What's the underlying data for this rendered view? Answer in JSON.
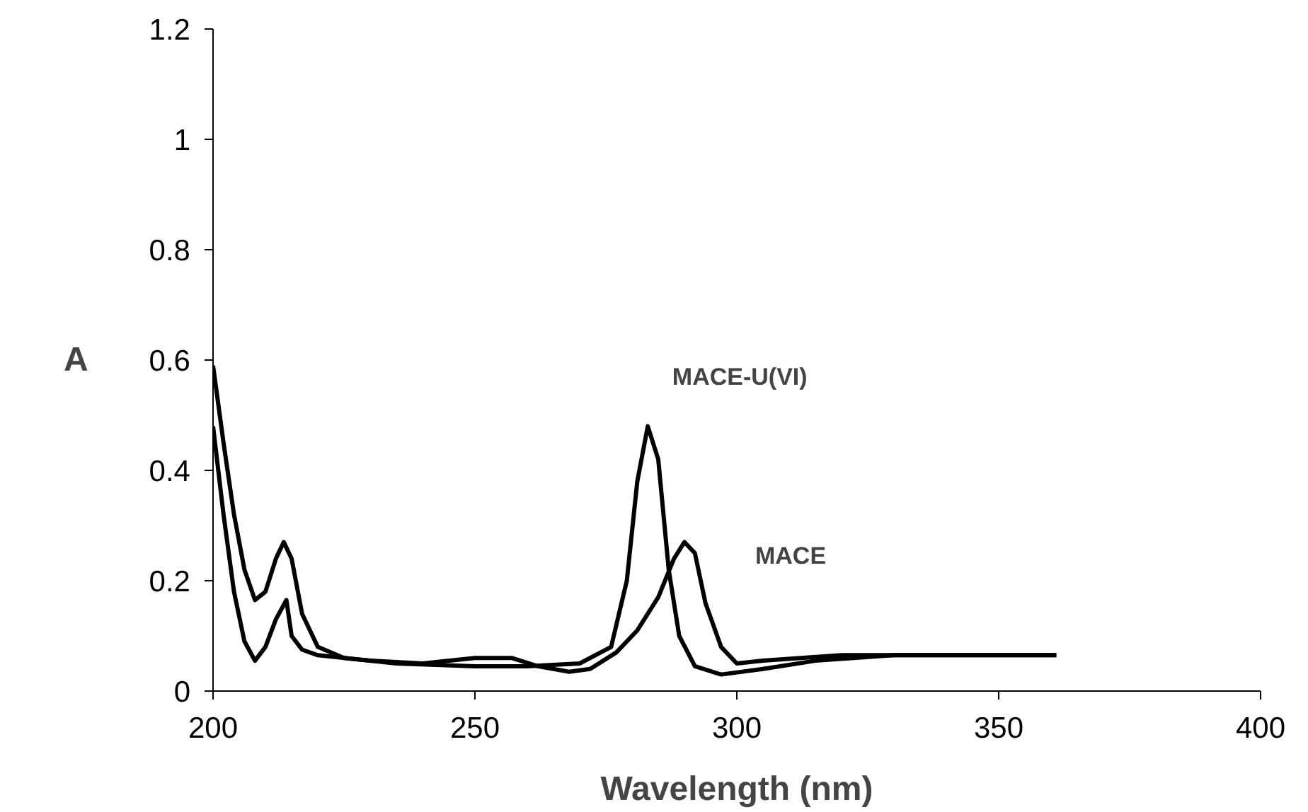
{
  "chart_data": {
    "type": "line",
    "xlabel": "Wavelength (nm)",
    "ylabel": "A",
    "xlim": [
      200,
      400
    ],
    "xticks": [
      200,
      250,
      300,
      350,
      400
    ],
    "ylim": [
      0,
      1.2
    ],
    "yticks": [
      0,
      0.2,
      0.4,
      0.6,
      0.8,
      1,
      1.2
    ],
    "grid": false,
    "line_style": "solid",
    "marker": "none",
    "series": [
      {
        "name": "MACE-U(VI)",
        "color": "#000000",
        "x": [
          200,
          202,
          204,
          206,
          208,
          210,
          212,
          213.5,
          215,
          217,
          220,
          225,
          235,
          250,
          260,
          270,
          276,
          279,
          281,
          283,
          285,
          287,
          289,
          292,
          297,
          305,
          315,
          330,
          361
        ],
        "values": [
          0.59,
          0.45,
          0.32,
          0.22,
          0.165,
          0.18,
          0.24,
          0.27,
          0.24,
          0.14,
          0.08,
          0.06,
          0.05,
          0.045,
          0.045,
          0.05,
          0.08,
          0.2,
          0.38,
          0.48,
          0.42,
          0.22,
          0.1,
          0.045,
          0.03,
          0.04,
          0.055,
          0.065,
          0.065
        ]
      },
      {
        "name": "MACE",
        "color": "#000000",
        "x": [
          200,
          202,
          204,
          206,
          208,
          210,
          212,
          214,
          215,
          217,
          220,
          230,
          240,
          250,
          257,
          262,
          268,
          272,
          277,
          281,
          285,
          288,
          290,
          292,
          294,
          297,
          300,
          305,
          320,
          361
        ],
        "values": [
          0.48,
          0.32,
          0.18,
          0.09,
          0.055,
          0.08,
          0.13,
          0.165,
          0.1,
          0.075,
          0.065,
          0.055,
          0.05,
          0.06,
          0.06,
          0.045,
          0.035,
          0.04,
          0.07,
          0.11,
          0.17,
          0.24,
          0.27,
          0.25,
          0.16,
          0.08,
          0.05,
          0.055,
          0.065,
          0.065
        ]
      }
    ]
  }
}
